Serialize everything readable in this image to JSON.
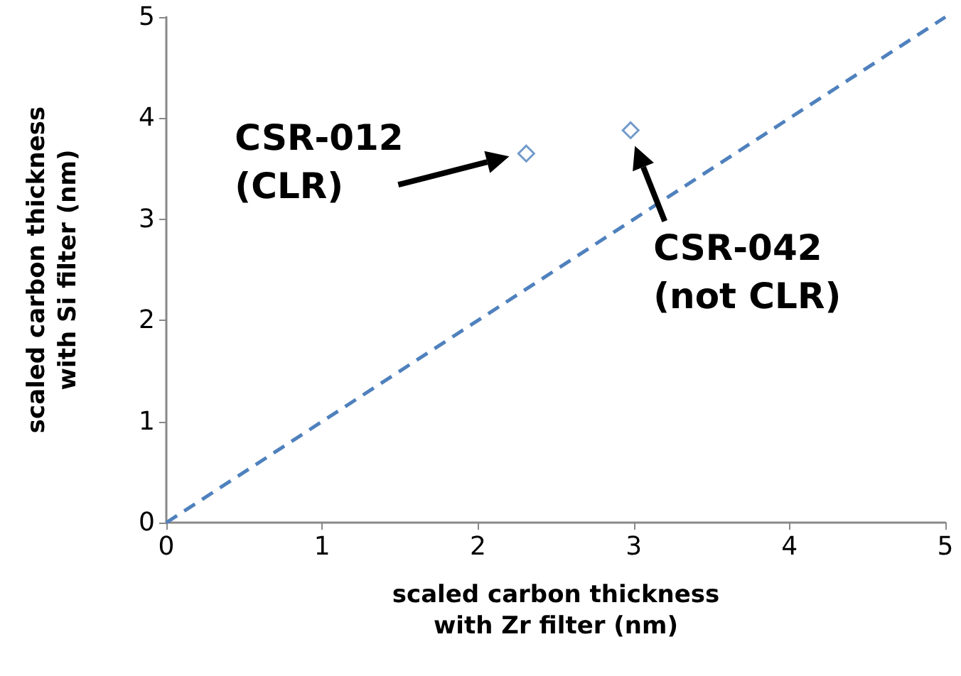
{
  "chart_data": {
    "type": "scatter",
    "xlabel": "scaled carbon thickness\nwith Zr filter (nm)",
    "ylabel": "scaled carbon thickness\nwith Si filter (nm)",
    "xlim": [
      0,
      5
    ],
    "xticks": [
      0,
      1,
      2,
      3,
      4,
      5
    ],
    "ylim": [
      0,
      5
    ],
    "yticks": [
      0,
      1,
      2,
      3,
      4,
      5
    ],
    "grid": false,
    "marker": "diamond",
    "series": [
      {
        "color": "#4f81bd",
        "x": [
          2.31,
          2.98
        ],
        "values": [
          3.65,
          3.88
        ]
      },
      {
        "type": "line",
        "color": "#4f81bd",
        "x": [
          0,
          5
        ],
        "values": [
          0,
          5
        ],
        "marker": "none",
        "line_style": "dashed"
      }
    ],
    "annotations": [
      "CSR-012\n(CLR)",
      "CSR-042\n(not CLR)"
    ]
  }
}
